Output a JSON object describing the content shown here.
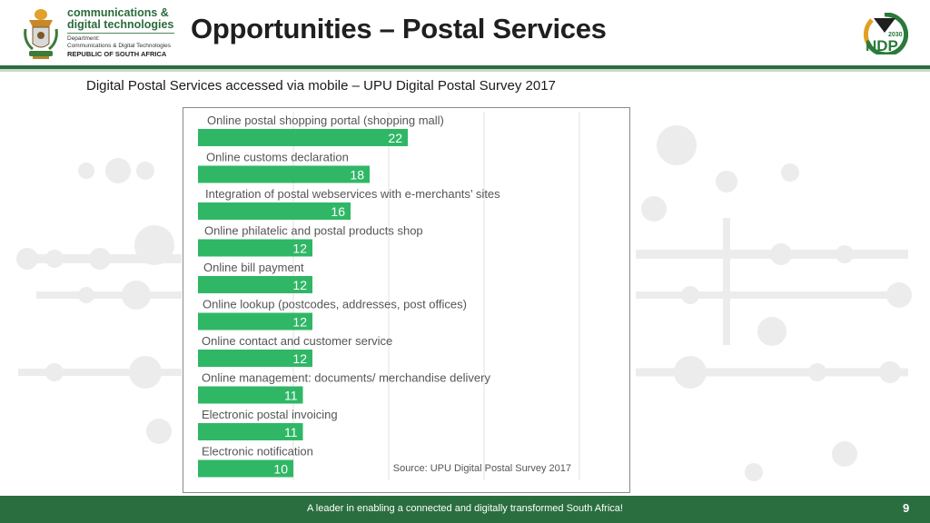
{
  "header": {
    "logo": {
      "line1": "communications &",
      "line2": "digital technologies",
      "dept1": "Department:",
      "dept2": "Communications & Digital Technologies",
      "country": "REPUBLIC OF SOUTH AFRICA"
    },
    "title": "Opportunities – Postal Services",
    "ndp_logo": {
      "year": "2030",
      "text": "NDP"
    }
  },
  "subtitle": "Digital Postal Services accessed via mobile – UPU Digital Postal Survey 2017",
  "chart_data": {
    "type": "bar",
    "orientation": "horizontal",
    "categories": [
      "Online postal shopping portal (shopping mall)",
      "Online customs declaration",
      "Integration of postal webservices with e-merchants’ sites",
      "Online philatelic and postal products shop",
      "Online bill payment",
      "Online lookup (postcodes, addresses, post offices)",
      "Online contact and customer service",
      "Online management: documents/ merchandise delivery",
      "Electronic postal invoicing",
      "Electronic notification"
    ],
    "values": [
      22,
      18,
      16,
      12,
      12,
      12,
      12,
      11,
      11,
      10
    ],
    "value_labels": [
      "22",
      "18",
      "16",
      "12",
      "12",
      "12",
      "12",
      "11",
      "11",
      "10"
    ],
    "xlim": [
      0,
      40
    ],
    "grid": true,
    "bar_color": "#2fb766",
    "source": "Source: UPU Digital Postal Survey 2017"
  },
  "footer": {
    "text": "A leader in enabling a connected and digitally transformed South Africa!",
    "page_number": "9"
  },
  "colors": {
    "brand_green": "#2a6e3f",
    "bar_green": "#2fb766"
  }
}
